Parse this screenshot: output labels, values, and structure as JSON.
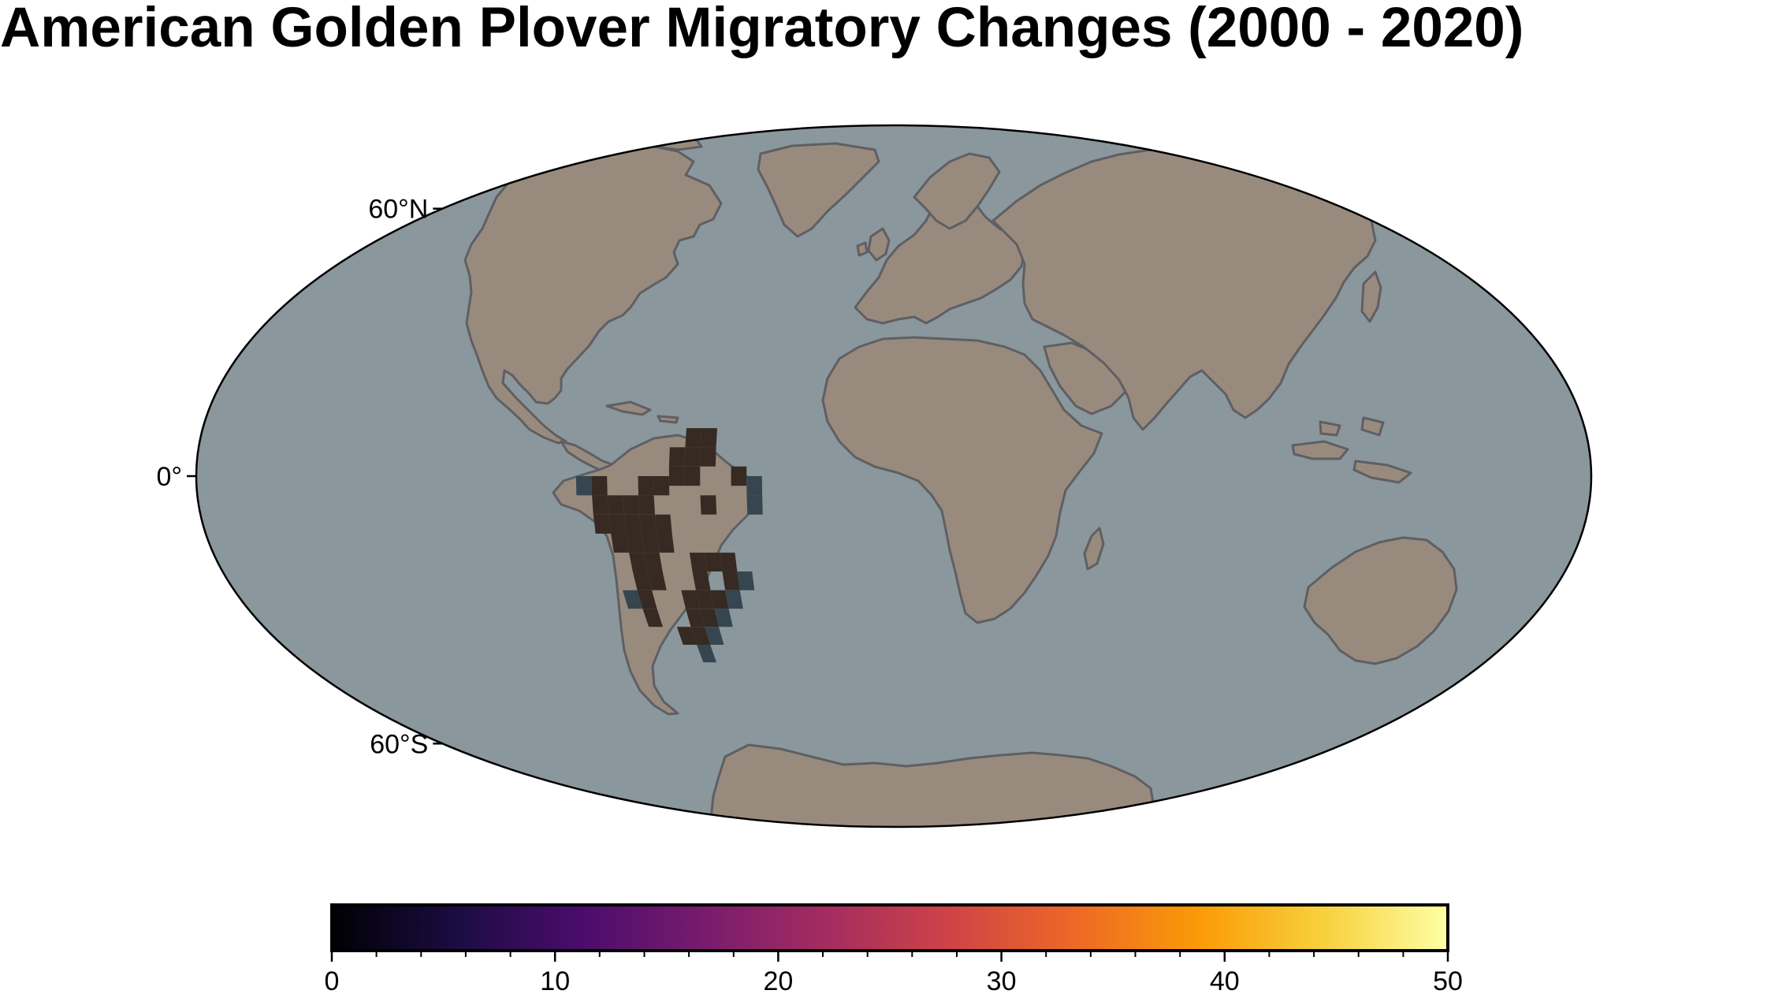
{
  "title": "American Golden Plover Migratory Changes (2000 - 2020)",
  "map": {
    "projection": "Mollweide",
    "central_meridian": "0°",
    "ocean_color": "#8a979c",
    "land_color": "#988b7e",
    "coastline_color": "#5f5f63",
    "frame_color": "#000000",
    "latitude_labels": [
      {
        "label": "60°N",
        "lat": 60
      },
      {
        "label": "0°",
        "lat": 0
      },
      {
        "label": "60°S",
        "lat": -60
      }
    ],
    "grid": false
  },
  "overlay": {
    "description_value_range": [
      0,
      50
    ],
    "colormap": "inferno",
    "cell_size_degrees": 4,
    "cell_colors": {
      "dense": "#372a23",
      "edge": "#364650"
    },
    "cells": [
      {
        "lon": -52,
        "lat": 8,
        "kind": "dense"
      },
      {
        "lon": -48,
        "lat": 8,
        "kind": "dense"
      },
      {
        "lon": -56,
        "lat": 4,
        "kind": "dense"
      },
      {
        "lon": -52,
        "lat": 4,
        "kind": "dense"
      },
      {
        "lon": -48,
        "lat": 4,
        "kind": "dense"
      },
      {
        "lon": -56,
        "lat": 0,
        "kind": "dense"
      },
      {
        "lon": -52,
        "lat": 0,
        "kind": "dense"
      },
      {
        "lon": -80,
        "lat": -2,
        "kind": "edge"
      },
      {
        "lon": -76,
        "lat": -2,
        "kind": "dense"
      },
      {
        "lon": -64,
        "lat": -2,
        "kind": "dense"
      },
      {
        "lon": -60,
        "lat": -2,
        "kind": "dense"
      },
      {
        "lon": -40,
        "lat": 0,
        "kind": "dense"
      },
      {
        "lon": -36,
        "lat": -2,
        "kind": "edge"
      },
      {
        "lon": -76,
        "lat": -6,
        "kind": "dense"
      },
      {
        "lon": -72,
        "lat": -6,
        "kind": "dense"
      },
      {
        "lon": -68,
        "lat": -6,
        "kind": "dense"
      },
      {
        "lon": -64,
        "lat": -6,
        "kind": "dense"
      },
      {
        "lon": -48,
        "lat": -6,
        "kind": "dense"
      },
      {
        "lon": -36,
        "lat": -6,
        "kind": "edge"
      },
      {
        "lon": -76,
        "lat": -10,
        "kind": "dense"
      },
      {
        "lon": -72,
        "lat": -10,
        "kind": "dense"
      },
      {
        "lon": -68,
        "lat": -10,
        "kind": "dense"
      },
      {
        "lon": -64,
        "lat": -10,
        "kind": "dense"
      },
      {
        "lon": -60,
        "lat": -10,
        "kind": "dense"
      },
      {
        "lon": -72,
        "lat": -14,
        "kind": "dense"
      },
      {
        "lon": -68,
        "lat": -14,
        "kind": "dense"
      },
      {
        "lon": -64,
        "lat": -14,
        "kind": "dense"
      },
      {
        "lon": -60,
        "lat": -14,
        "kind": "dense"
      },
      {
        "lon": -68,
        "lat": -18,
        "kind": "dense"
      },
      {
        "lon": -64,
        "lat": -18,
        "kind": "dense"
      },
      {
        "lon": -52,
        "lat": -18,
        "kind": "dense"
      },
      {
        "lon": -48,
        "lat": -18,
        "kind": "dense"
      },
      {
        "lon": -44,
        "lat": -18,
        "kind": "dense"
      },
      {
        "lon": -68,
        "lat": -22,
        "kind": "dense"
      },
      {
        "lon": -64,
        "lat": -22,
        "kind": "dense"
      },
      {
        "lon": -52,
        "lat": -22,
        "kind": "dense"
      },
      {
        "lon": -44,
        "lat": -22,
        "kind": "dense"
      },
      {
        "lon": -40,
        "lat": -22,
        "kind": "edge"
      },
      {
        "lon": -72,
        "lat": -26,
        "kind": "edge"
      },
      {
        "lon": -68,
        "lat": -26,
        "kind": "dense"
      },
      {
        "lon": -56,
        "lat": -26,
        "kind": "dense"
      },
      {
        "lon": -52,
        "lat": -26,
        "kind": "dense"
      },
      {
        "lon": -48,
        "lat": -26,
        "kind": "dense"
      },
      {
        "lon": -44,
        "lat": -26,
        "kind": "edge"
      },
      {
        "lon": -68,
        "lat": -30,
        "kind": "dense"
      },
      {
        "lon": -56,
        "lat": -30,
        "kind": "dense"
      },
      {
        "lon": -52,
        "lat": -30,
        "kind": "dense"
      },
      {
        "lon": -48,
        "lat": -30,
        "kind": "edge"
      },
      {
        "lon": -60,
        "lat": -34,
        "kind": "dense"
      },
      {
        "lon": -56,
        "lat": -34,
        "kind": "dense"
      },
      {
        "lon": -52,
        "lat": -34,
        "kind": "edge"
      },
      {
        "lon": -56,
        "lat": -38,
        "kind": "edge"
      }
    ]
  },
  "colorbar": {
    "min": 0,
    "max": 50,
    "tick_labels": [
      "0",
      "10",
      "20",
      "30",
      "40",
      "50"
    ],
    "tick_values": [
      0,
      10,
      20,
      30,
      40,
      50
    ],
    "minor_step": 2,
    "stops": [
      "#000004",
      "#1b0c41",
      "#4a0c6b",
      "#781c6d",
      "#a52c60",
      "#cf4446",
      "#ed6925",
      "#fb9b06",
      "#f7d13d",
      "#fcffa4"
    ]
  }
}
